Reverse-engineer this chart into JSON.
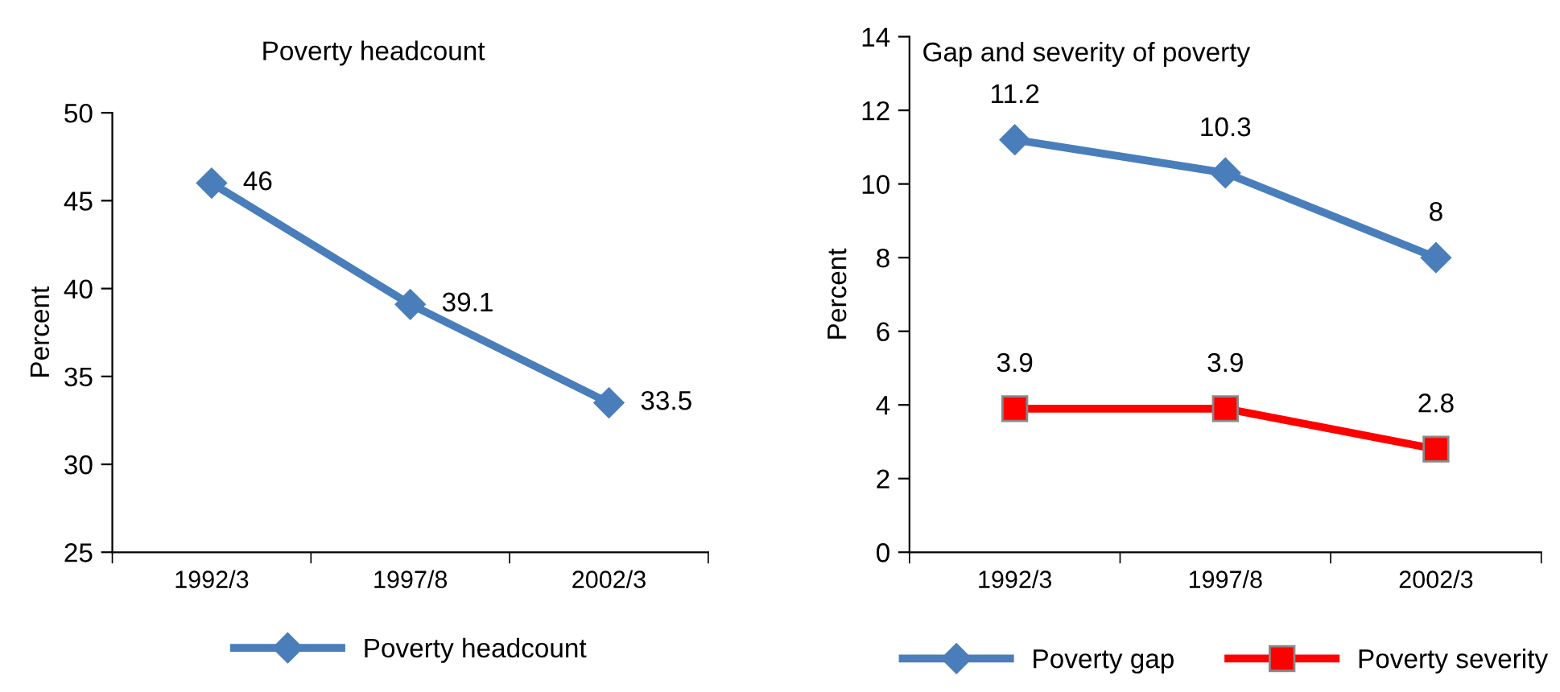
{
  "chart_data": [
    {
      "type": "line",
      "title": "Poverty headcount",
      "ylabel": "Percent",
      "categories": [
        "1992/3",
        "1997/8",
        "2002/3"
      ],
      "series": [
        {
          "name": "Poverty headcount",
          "color": "#4a7ebb",
          "values": [
            46,
            39.1,
            33.5
          ]
        }
      ],
      "ylim": [
        25,
        50
      ],
      "yticks": [
        25,
        30,
        35,
        40,
        45,
        50
      ],
      "grid": false,
      "legend": "bottom",
      "marker": "diamond",
      "line_style": "solid",
      "data_labels": true
    },
    {
      "type": "line",
      "title": "Gap and severity of poverty",
      "ylabel": "Percent",
      "categories": [
        "1992/3",
        "1997/8",
        "2002/3"
      ],
      "series": [
        {
          "name": "Poverty gap",
          "color": "#4a7ebb",
          "values": [
            11.2,
            10.3,
            8
          ],
          "marker": "diamond"
        },
        {
          "name": "Poverty severity",
          "color": "#ff0000",
          "values": [
            3.9,
            3.9,
            2.8
          ],
          "marker": "square"
        }
      ],
      "ylim": [
        0,
        14
      ],
      "yticks": [
        0,
        2,
        4,
        6,
        8,
        10,
        12,
        14
      ],
      "grid": false,
      "legend": "bottom",
      "line_style": "solid",
      "data_labels": true
    }
  ]
}
